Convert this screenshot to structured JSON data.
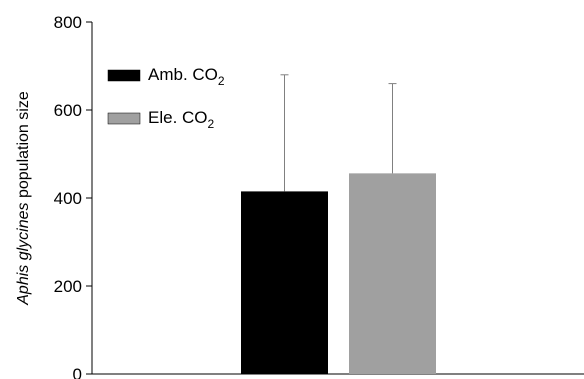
{
  "chart_data": {
    "type": "bar",
    "title": "",
    "xlabel": "",
    "ylabel": {
      "italic": "Aphis glycines",
      "rest": " population size"
    },
    "ylim": [
      0,
      800
    ],
    "yticks": [
      0,
      200,
      400,
      600,
      800
    ],
    "grid": false,
    "legend_position": "top-left",
    "series": [
      {
        "name": "Amb. CO2",
        "name_base": "Amb. CO",
        "name_sub": "2",
        "value": 415,
        "error_upper": 680,
        "color": "#000000"
      },
      {
        "name": "Ele. CO2",
        "name_base": "Ele. CO",
        "name_sub": "2",
        "value": 456,
        "error_upper": 660,
        "color": "#a0a0a0"
      }
    ]
  }
}
